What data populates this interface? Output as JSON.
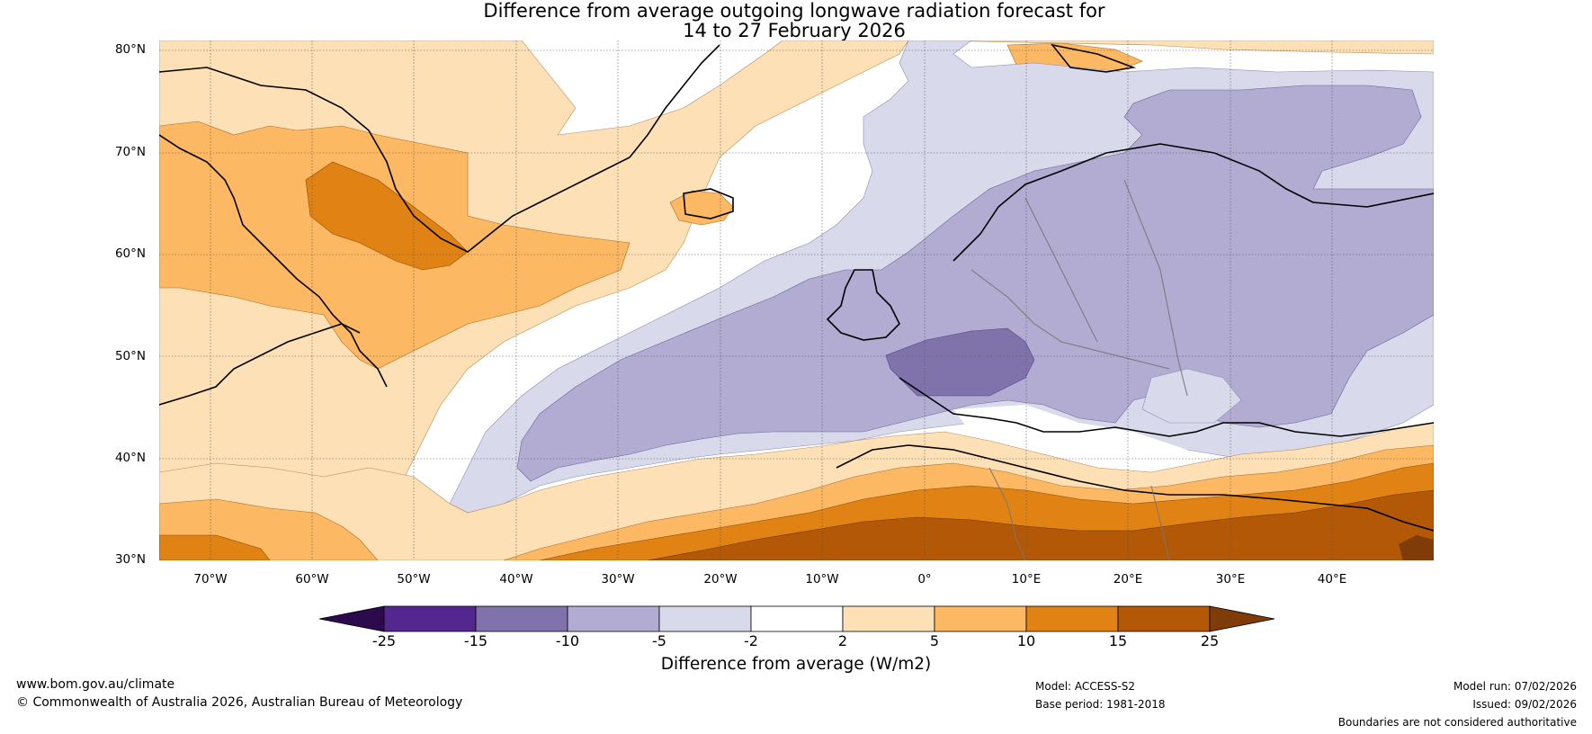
{
  "title": {
    "line1": "Difference from average outgoing longwave radiation forecast for",
    "line2": "14 to 27 February 2026"
  },
  "map": {
    "lat_labels": [
      "80°N",
      "70°N",
      "60°N",
      "50°N",
      "40°N",
      "30°N"
    ],
    "lon_labels": [
      "70°W",
      "60°W",
      "50°W",
      "40°W",
      "30°W",
      "20°W",
      "10°W",
      "0°",
      "10°E",
      "20°E",
      "30°E",
      "40°E"
    ],
    "lat_range": [
      30,
      81
    ],
    "lon_range": [
      -75,
      50
    ]
  },
  "colorbar": {
    "title": "Difference from average (W/m2)",
    "tick_labels": [
      "-25",
      "-15",
      "-10",
      "-5",
      "-2",
      "2",
      "5",
      "10",
      "15",
      "25"
    ],
    "colors": {
      "under": "#2d0a4e",
      "lt_m15": "#54278f",
      "m15_m10": "#8073ac",
      "m10_m5": "#b2abd2",
      "m5_m2": "#d8daeb",
      "m2_2": "#ffffff",
      "p2_5": "#fee0b6",
      "p5_10": "#fdb863",
      "p10_15": "#e08214",
      "p15_25": "#b35806",
      "over": "#7f3b08"
    }
  },
  "footer": {
    "website": "www.bom.gov.au/climate",
    "copyright": "© Commonwealth of Australia 2026, Australian Bureau of Meteorology",
    "model": "Model: ACCESS-S2",
    "base_period": "Base period: 1981-2018",
    "model_run": "Model run: 07/02/2026",
    "issued": "Issued: 09/02/2026",
    "disclaimer": "Boundaries are not considered authoritative"
  }
}
